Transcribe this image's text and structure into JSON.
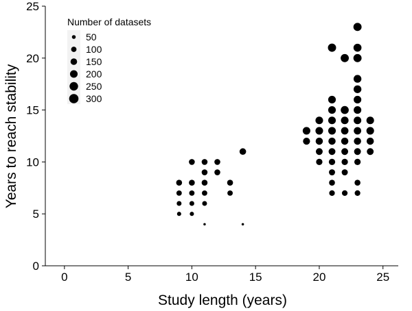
{
  "chart_data": {
    "type": "scatter",
    "xlabel": "Study length (years)",
    "ylabel": "Years to reach stability",
    "xlim": [
      -1.5,
      26.2
    ],
    "ylim": [
      0,
      25
    ],
    "xticks": [
      0,
      5,
      10,
      15,
      20,
      25
    ],
    "yticks": [
      0,
      5,
      10,
      15,
      20,
      25
    ],
    "grid": false,
    "marker_color": "#000000",
    "legend": {
      "title": "Number of datasets",
      "placement": "top-left",
      "entries": [
        {
          "label": "50",
          "value": 50
        },
        {
          "label": "100",
          "value": 100
        },
        {
          "label": "150",
          "value": 150
        },
        {
          "label": "200",
          "value": 200
        },
        {
          "label": "250",
          "value": 250
        },
        {
          "label": "300",
          "value": 300
        }
      ]
    },
    "points": [
      {
        "x": 9,
        "y": 8,
        "n": 120
      },
      {
        "x": 9,
        "y": 7,
        "n": 100
      },
      {
        "x": 9,
        "y": 6,
        "n": 80
      },
      {
        "x": 9,
        "y": 5,
        "n": 60
      },
      {
        "x": 10,
        "y": 10,
        "n": 120
      },
      {
        "x": 10,
        "y": 8,
        "n": 120
      },
      {
        "x": 10,
        "y": 7,
        "n": 100
      },
      {
        "x": 10,
        "y": 6,
        "n": 80
      },
      {
        "x": 10,
        "y": 5,
        "n": 60
      },
      {
        "x": 11,
        "y": 10,
        "n": 120
      },
      {
        "x": 11,
        "y": 9,
        "n": 120
      },
      {
        "x": 11,
        "y": 8,
        "n": 120
      },
      {
        "x": 11,
        "y": 7,
        "n": 100
      },
      {
        "x": 11,
        "y": 6,
        "n": 80
      },
      {
        "x": 11,
        "y": 4,
        "n": 20
      },
      {
        "x": 12,
        "y": 10,
        "n": 120
      },
      {
        "x": 12,
        "y": 9,
        "n": 120
      },
      {
        "x": 13,
        "y": 8,
        "n": 120
      },
      {
        "x": 13,
        "y": 7,
        "n": 100
      },
      {
        "x": 14,
        "y": 11,
        "n": 150
      },
      {
        "x": 14,
        "y": 4,
        "n": 20
      },
      {
        "x": 19,
        "y": 13,
        "n": 200
      },
      {
        "x": 19,
        "y": 12,
        "n": 170
      },
      {
        "x": 20,
        "y": 14,
        "n": 200
      },
      {
        "x": 20,
        "y": 13,
        "n": 200
      },
      {
        "x": 20,
        "y": 12,
        "n": 180
      },
      {
        "x": 20,
        "y": 11,
        "n": 160
      },
      {
        "x": 20,
        "y": 10,
        "n": 140
      },
      {
        "x": 21,
        "y": 21,
        "n": 230
      },
      {
        "x": 21,
        "y": 16,
        "n": 200
      },
      {
        "x": 21,
        "y": 15,
        "n": 200
      },
      {
        "x": 21,
        "y": 14,
        "n": 200
      },
      {
        "x": 21,
        "y": 13,
        "n": 200
      },
      {
        "x": 21,
        "y": 12,
        "n": 180
      },
      {
        "x": 21,
        "y": 11,
        "n": 160
      },
      {
        "x": 21,
        "y": 10,
        "n": 140
      },
      {
        "x": 21,
        "y": 9,
        "n": 130
      },
      {
        "x": 21,
        "y": 8,
        "n": 120
      },
      {
        "x": 21,
        "y": 7,
        "n": 110
      },
      {
        "x": 22,
        "y": 20,
        "n": 230
      },
      {
        "x": 22,
        "y": 15,
        "n": 220
      },
      {
        "x": 22,
        "y": 14,
        "n": 200
      },
      {
        "x": 22,
        "y": 13,
        "n": 190
      },
      {
        "x": 22,
        "y": 12,
        "n": 180
      },
      {
        "x": 22,
        "y": 11,
        "n": 160
      },
      {
        "x": 22,
        "y": 10,
        "n": 140
      },
      {
        "x": 22,
        "y": 9,
        "n": 130
      },
      {
        "x": 22,
        "y": 7,
        "n": 110
      },
      {
        "x": 23,
        "y": 23,
        "n": 230
      },
      {
        "x": 23,
        "y": 21,
        "n": 220
      },
      {
        "x": 23,
        "y": 20,
        "n": 230
      },
      {
        "x": 23,
        "y": 18,
        "n": 210
      },
      {
        "x": 23,
        "y": 17,
        "n": 210
      },
      {
        "x": 23,
        "y": 16,
        "n": 200
      },
      {
        "x": 23,
        "y": 15,
        "n": 200
      },
      {
        "x": 23,
        "y": 14,
        "n": 200
      },
      {
        "x": 23,
        "y": 13,
        "n": 190
      },
      {
        "x": 23,
        "y": 12,
        "n": 180
      },
      {
        "x": 23,
        "y": 11,
        "n": 160
      },
      {
        "x": 23,
        "y": 10,
        "n": 140
      },
      {
        "x": 23,
        "y": 8,
        "n": 120
      },
      {
        "x": 23,
        "y": 7,
        "n": 110
      },
      {
        "x": 24,
        "y": 14,
        "n": 200
      },
      {
        "x": 24,
        "y": 13,
        "n": 200
      },
      {
        "x": 24,
        "y": 12,
        "n": 180
      },
      {
        "x": 24,
        "y": 11,
        "n": 160
      }
    ]
  }
}
